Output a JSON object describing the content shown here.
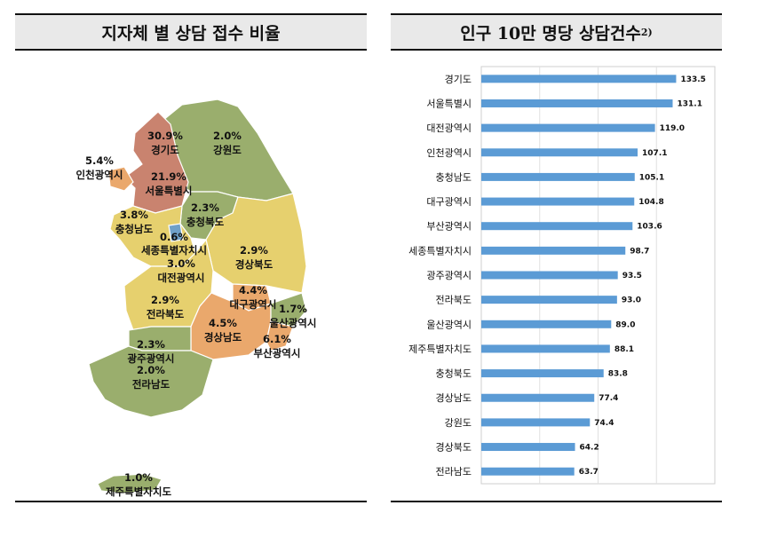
{
  "map_panel": {
    "title": "지자체 별 상담 접수 비율",
    "regions": [
      {
        "name": "경기도",
        "pct": "30.9%"
      },
      {
        "name": "강원도",
        "pct": "2.0%"
      },
      {
        "name": "인천광역시",
        "pct": "5.4%"
      },
      {
        "name": "서울특별시",
        "pct": "21.9%"
      },
      {
        "name": "충청북도",
        "pct": "2.3%"
      },
      {
        "name": "충청남도",
        "pct": "3.8%"
      },
      {
        "name": "세종특별자치시",
        "pct": "0.6%"
      },
      {
        "name": "대전광역시",
        "pct": "3.0%"
      },
      {
        "name": "경상북도",
        "pct": "2.9%"
      },
      {
        "name": "전라북도",
        "pct": "2.9%"
      },
      {
        "name": "대구광역시",
        "pct": "4.4%"
      },
      {
        "name": "울산광역시",
        "pct": "1.7%"
      },
      {
        "name": "경상남도",
        "pct": "4.5%"
      },
      {
        "name": "부산광역시",
        "pct": "6.1%"
      },
      {
        "name": "광주광역시",
        "pct": "2.3%"
      },
      {
        "name": "전라남도",
        "pct": "2.0%"
      },
      {
        "name": "제주특별자치도",
        "pct": "1.0%"
      }
    ],
    "colors": {
      "high": "#c9836f",
      "mid": "#eaa86c",
      "low": "#e6d06e",
      "min": "#9aae6d",
      "sejong": "#6fa0c8"
    }
  },
  "chart_data": {
    "type": "bar",
    "orientation": "horizontal",
    "title": "인구 10만 명당 상담건수",
    "title_footnote": "2)",
    "categories": [
      "경기도",
      "서울특별시",
      "대전광역시",
      "인천광역시",
      "충청남도",
      "대구광역시",
      "부산광역시",
      "세종특별자치시",
      "광주광역시",
      "전라북도",
      "울산광역시",
      "제주특별자치도",
      "충청북도",
      "경상남도",
      "강원도",
      "경상북도",
      "전라남도"
    ],
    "values": [
      133.5,
      131.1,
      119.0,
      107.1,
      105.1,
      104.8,
      103.6,
      98.7,
      93.5,
      93.0,
      89.0,
      88.1,
      83.8,
      77.4,
      74.4,
      64.2,
      63.7
    ],
    "value_labels": [
      "133.5",
      "131.1",
      "119.0",
      "107.1",
      "105.1",
      "104.8",
      "103.6",
      "98.7",
      "93.5",
      "93.0",
      "89.0",
      "88.1",
      "83.8",
      "77.4",
      "74.4",
      "64.2",
      "63.7"
    ],
    "xlim": [
      0,
      160
    ],
    "grid": true,
    "bar_color": "#5b9bd5"
  }
}
